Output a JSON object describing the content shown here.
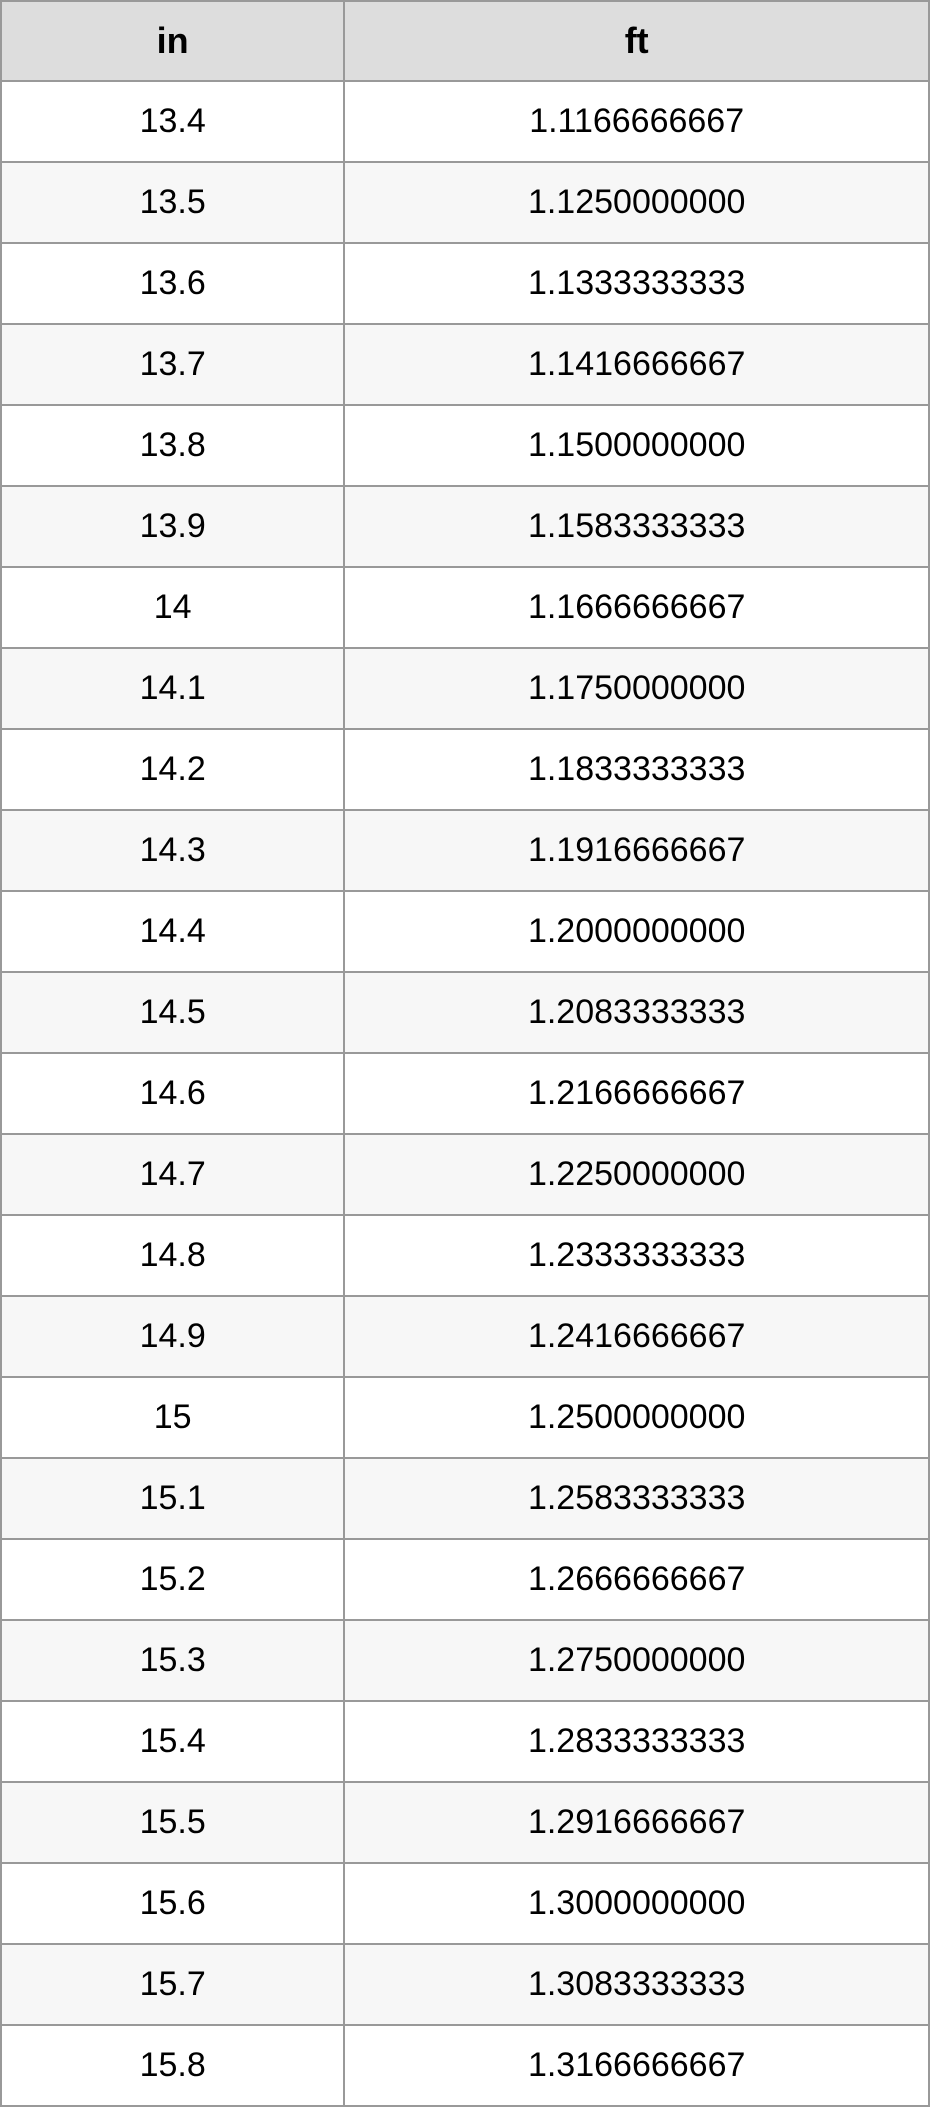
{
  "table": {
    "type": "table",
    "columns": [
      "in",
      "ft"
    ],
    "rows": [
      [
        "13.4",
        "1.1166666667"
      ],
      [
        "13.5",
        "1.1250000000"
      ],
      [
        "13.6",
        "1.1333333333"
      ],
      [
        "13.7",
        "1.1416666667"
      ],
      [
        "13.8",
        "1.1500000000"
      ],
      [
        "13.9",
        "1.1583333333"
      ],
      [
        "14",
        "1.1666666667"
      ],
      [
        "14.1",
        "1.1750000000"
      ],
      [
        "14.2",
        "1.1833333333"
      ],
      [
        "14.3",
        "1.1916666667"
      ],
      [
        "14.4",
        "1.2000000000"
      ],
      [
        "14.5",
        "1.2083333333"
      ],
      [
        "14.6",
        "1.2166666667"
      ],
      [
        "14.7",
        "1.2250000000"
      ],
      [
        "14.8",
        "1.2333333333"
      ],
      [
        "14.9",
        "1.2416666667"
      ],
      [
        "15",
        "1.2500000000"
      ],
      [
        "15.1",
        "1.2583333333"
      ],
      [
        "15.2",
        "1.2666666667"
      ],
      [
        "15.3",
        "1.2750000000"
      ],
      [
        "15.4",
        "1.2833333333"
      ],
      [
        "15.5",
        "1.2916666667"
      ],
      [
        "15.6",
        "1.3000000000"
      ],
      [
        "15.7",
        "1.3083333333"
      ],
      [
        "15.8",
        "1.3166666667"
      ]
    ],
    "header_background": "#dddddd",
    "border_color": "#999999",
    "row_alt_background": "#f7f7f7",
    "row_background": "#ffffff",
    "header_fontsize": 36,
    "cell_fontsize": 34,
    "text_color": "#000000",
    "column_widths_pct": [
      37,
      63
    ]
  }
}
